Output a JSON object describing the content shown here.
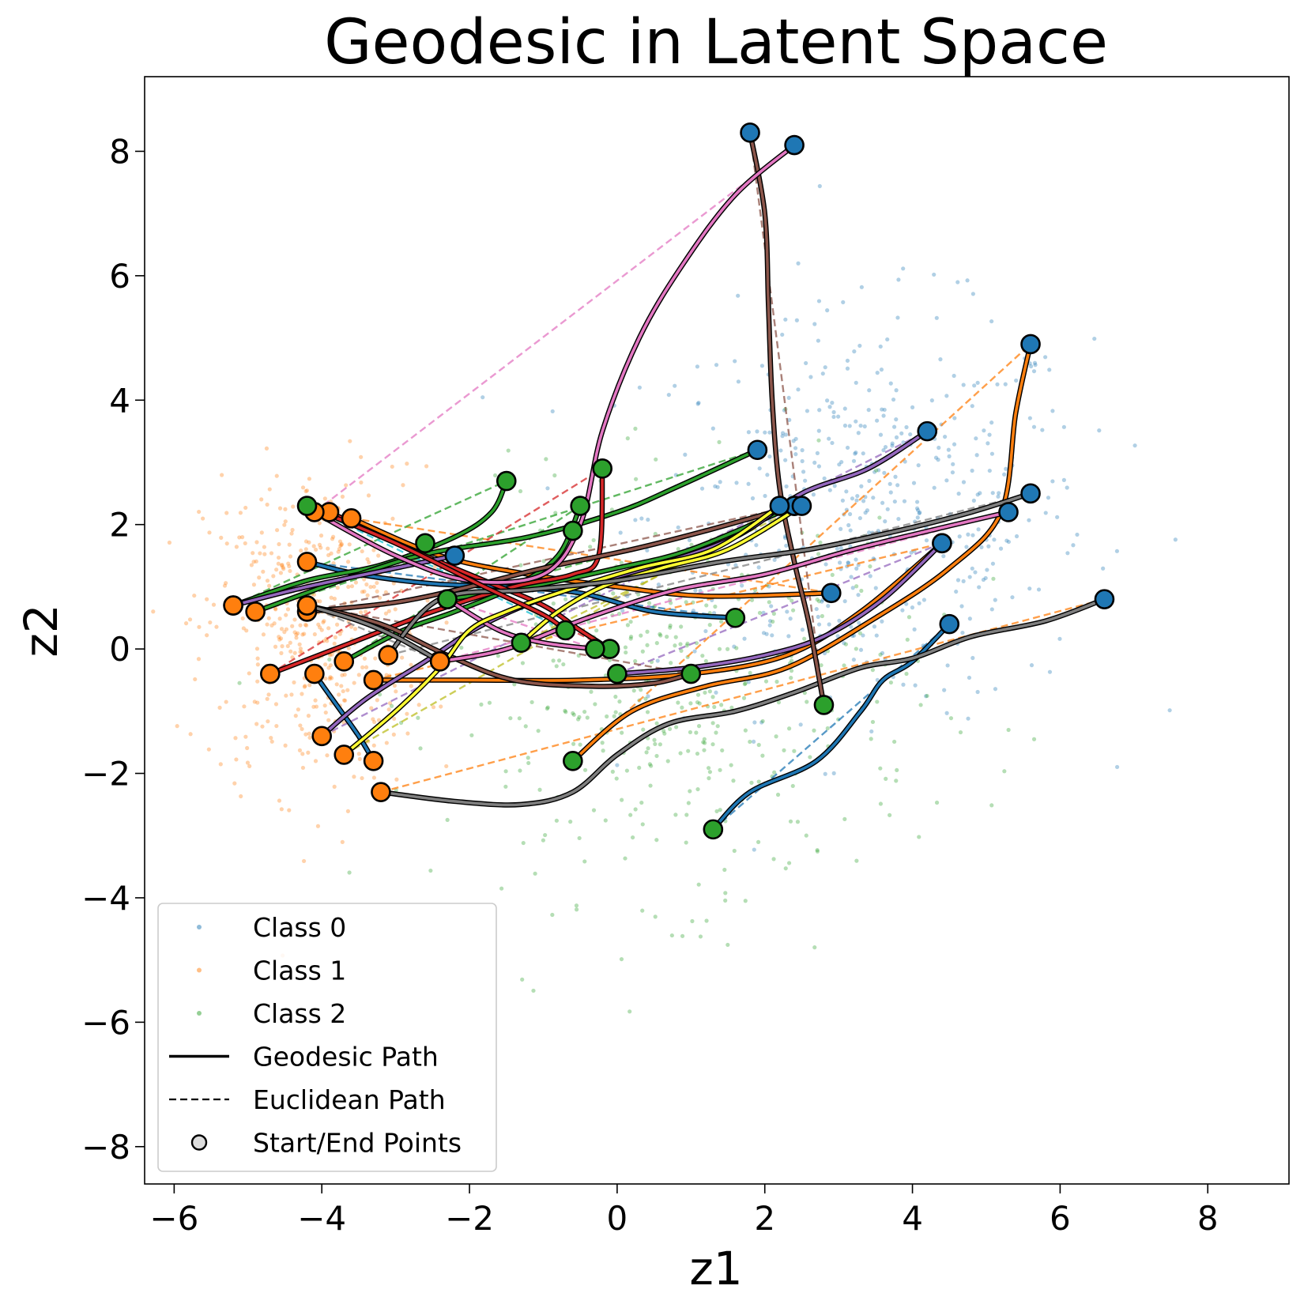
{
  "chart_data": {
    "type": "scatter",
    "title": "Geodesic in Latent Space",
    "xlabel": "z1",
    "ylabel": "z2",
    "xlim": [
      -6.4,
      9.1
    ],
    "ylim": [
      -8.6,
      9.2
    ],
    "xticks": [
      -6,
      -4,
      -2,
      0,
      2,
      4,
      6,
      8
    ],
    "yticks": [
      -8,
      -6,
      -4,
      -2,
      0,
      2,
      4,
      6,
      8
    ],
    "xtick_labels": [
      "−6",
      "−4",
      "−2",
      "0",
      "2",
      "4",
      "6",
      "8"
    ],
    "ytick_labels": [
      "−8",
      "−6",
      "−4",
      "−2",
      "0",
      "2",
      "4",
      "6",
      "8"
    ],
    "grid": false,
    "legend_position": "lower-left",
    "legend": [
      {
        "label": "Class 0",
        "kind": "dot",
        "color": "#1f77b4"
      },
      {
        "label": "Class 1",
        "kind": "dot",
        "color": "#ff7f0e"
      },
      {
        "label": "Class 2",
        "kind": "dot",
        "color": "#2ca02c"
      },
      {
        "label": "Geodesic Path",
        "kind": "solid"
      },
      {
        "label": "Euclidean Path",
        "kind": "dashed"
      },
      {
        "label": "Start/End Points",
        "kind": "marker"
      }
    ],
    "scatter_classes": [
      {
        "name": "Class 0",
        "color": "#1f77b4",
        "count": 500,
        "center": [
          3.4,
          2.2
        ],
        "spread": [
          1.5,
          1.6
        ]
      },
      {
        "name": "Class 1",
        "color": "#ff7f0e",
        "count": 450,
        "center": [
          -4.1,
          0.3
        ],
        "spread": [
          0.75,
          1.3
        ]
      },
      {
        "name": "Class 2",
        "color": "#2ca02c",
        "count": 450,
        "center": [
          0.9,
          -0.8
        ],
        "spread": [
          1.6,
          1.6
        ]
      }
    ],
    "paths": [
      {
        "color": "#1f77b4",
        "start": [
          -4.2,
          1.4
        ],
        "end": [
          1.6,
          0.5
        ],
        "start_class": 1,
        "end_class": 2,
        "geodesic": [
          [
            -4.2,
            1.4
          ],
          [
            -3.5,
            1.2
          ],
          [
            -2.5,
            1.05
          ],
          [
            -1.5,
            1.0
          ],
          [
            -0.5,
            0.9
          ],
          [
            0.5,
            0.6
          ],
          [
            1.6,
            0.5
          ]
        ]
      },
      {
        "color": "#1f77b4",
        "start": [
          -4.1,
          -0.4
        ],
        "end": [
          -3.3,
          -1.8
        ],
        "start_class": 1,
        "end_class": 1,
        "geodesic": [
          [
            -4.1,
            -0.4
          ],
          [
            -3.8,
            -0.9
          ],
          [
            -3.5,
            -1.4
          ],
          [
            -3.3,
            -1.8
          ]
        ]
      },
      {
        "color": "#1f77b4",
        "start": [
          1.3,
          -2.9
        ],
        "end": [
          4.5,
          0.4
        ],
        "start_class": 2,
        "end_class": 0,
        "geodesic": [
          [
            1.3,
            -2.9
          ],
          [
            1.8,
            -2.3
          ],
          [
            2.7,
            -1.8
          ],
          [
            3.3,
            -1.0
          ],
          [
            3.6,
            -0.5
          ],
          [
            4.0,
            -0.2
          ],
          [
            4.5,
            0.4
          ]
        ]
      },
      {
        "color": "#ff7f0e",
        "start": [
          -3.2,
          -2.3
        ],
        "end": [
          5.6,
          4.9
        ],
        "start_class": 1,
        "end_class": 0,
        "geodesic_color": "#7f7f7f",
        "geodesic": [
          [
            -3.2,
            -2.3
          ],
          [
            -2.2,
            -2.45
          ],
          [
            -1.3,
            -2.5
          ],
          [
            -0.6,
            -2.3
          ],
          [
            0.0,
            -1.7
          ],
          [
            0.7,
            -1.2
          ],
          [
            1.6,
            -1.0
          ],
          [
            2.4,
            -0.7
          ],
          [
            3.3,
            -0.3
          ],
          [
            4.0,
            -0.15
          ],
          [
            4.8,
            0.2
          ],
          [
            5.8,
            0.45
          ],
          [
            6.6,
            0.8
          ]
        ],
        "euclid_end": [
          6.6,
          0.8
        ]
      },
      {
        "color": "#ff7f0e",
        "start": [
          -0.6,
          -1.8
        ],
        "end": [
          5.6,
          4.9
        ],
        "start_class": 2,
        "end_class": 0,
        "geodesic": [
          [
            -0.6,
            -1.8
          ],
          [
            0.2,
            -1.0
          ],
          [
            1.2,
            -0.6
          ],
          [
            2.3,
            -0.3
          ],
          [
            3.5,
            0.5
          ],
          [
            4.5,
            1.3
          ],
          [
            5.2,
            2.2
          ],
          [
            5.4,
            3.8
          ],
          [
            5.6,
            4.9
          ]
        ]
      },
      {
        "color": "#ff7f0e",
        "start": [
          -3.6,
          2.1
        ],
        "end": [
          2.9,
          0.9
        ],
        "start_class": 1,
        "end_class": 0,
        "geodesic": [
          [
            -3.6,
            2.1
          ],
          [
            -2.4,
            1.5
          ],
          [
            -1.2,
            1.2
          ],
          [
            0.0,
            1.0
          ],
          [
            1.2,
            0.85
          ],
          [
            2.9,
            0.9
          ]
        ]
      },
      {
        "color": "#ff7f0e",
        "start": [
          -3.3,
          -0.5
        ],
        "end": [
          4.4,
          1.7
        ],
        "start_class": 1,
        "end_class": 0,
        "geodesic": [
          [
            -3.3,
            -0.5
          ],
          [
            -2.0,
            -0.5
          ],
          [
            -0.5,
            -0.5
          ],
          [
            1.0,
            -0.4
          ],
          [
            2.3,
            -0.1
          ],
          [
            3.3,
            0.6
          ],
          [
            4.4,
            1.7
          ]
        ]
      },
      {
        "color": "#2ca02c",
        "start": [
          -5.2,
          0.7
        ],
        "end": [
          -1.5,
          2.7
        ],
        "start_class": 1,
        "end_class": 2,
        "geodesic": [
          [
            -5.2,
            0.7
          ],
          [
            -4.2,
            1.1
          ],
          [
            -3.2,
            1.35
          ],
          [
            -2.2,
            1.8
          ],
          [
            -1.7,
            2.2
          ],
          [
            -1.5,
            2.7
          ]
        ]
      },
      {
        "color": "#2ca02c",
        "start": [
          -4.9,
          0.6
        ],
        "end": [
          1.9,
          3.2
        ],
        "start_class": 1,
        "end_class": 0,
        "geodesic": [
          [
            -4.9,
            0.6
          ],
          [
            -3.5,
            1.2
          ],
          [
            -2.5,
            1.55
          ],
          [
            -1.2,
            1.8
          ],
          [
            0.0,
            2.2
          ],
          [
            0.8,
            2.6
          ],
          [
            1.9,
            3.2
          ]
        ]
      },
      {
        "color": "#2ca02c",
        "start": [
          -3.7,
          -0.2
        ],
        "end": [
          -0.5,
          2.3
        ],
        "start_class": 1,
        "end_class": 2,
        "geodesic": [
          [
            -3.7,
            -0.2
          ],
          [
            -2.9,
            0.3
          ],
          [
            -2.2,
            0.6
          ],
          [
            -1.4,
            1.0
          ],
          [
            -0.8,
            1.5
          ],
          [
            -0.5,
            2.3
          ]
        ]
      },
      {
        "color": "#2ca02c",
        "start": [
          -2.3,
          0.8
        ],
        "end": [
          2.4,
          2.3
        ],
        "start_class": 2,
        "end_class": 0,
        "geodesic": [
          [
            -2.3,
            0.8
          ],
          [
            -1.2,
            1.0
          ],
          [
            0.0,
            1.3
          ],
          [
            1.0,
            1.6
          ],
          [
            2.4,
            2.3
          ]
        ]
      },
      {
        "color": "#d62728",
        "start": [
          -4.7,
          -0.4
        ],
        "end": [
          -0.2,
          2.9
        ],
        "start_class": 1,
        "end_class": 2,
        "geodesic": [
          [
            -4.7,
            -0.4
          ],
          [
            -3.6,
            0.1
          ],
          [
            -2.5,
            0.6
          ],
          [
            -1.4,
            1.0
          ],
          [
            -0.6,
            1.2
          ],
          [
            -0.25,
            1.5
          ],
          [
            -0.2,
            2.9
          ]
        ]
      },
      {
        "color": "#d62728",
        "start": [
          -3.9,
          2.2
        ],
        "end": [
          -0.1,
          0.0
        ],
        "start_class": 1,
        "end_class": 2,
        "geodesic": [
          [
            -3.9,
            2.2
          ],
          [
            -2.8,
            1.6
          ],
          [
            -1.8,
            1.1
          ],
          [
            -1.0,
            0.7
          ],
          [
            -0.5,
            0.3
          ],
          [
            -0.1,
            0.0
          ]
        ]
      },
      {
        "color": "#9467bd",
        "start": [
          -5.2,
          0.7
        ],
        "end": [
          4.2,
          3.5
        ],
        "start_class": 1,
        "end_class": 0,
        "geodesic_color": "#9467bd",
        "geodesic": [
          [
            -5.2,
            0.7
          ],
          [
            -4.2,
            1.0
          ],
          [
            -3.0,
            1.3
          ],
          [
            -2.2,
            1.5
          ]
        ]
      },
      {
        "color": "#9467bd",
        "start": [
          -4.0,
          -1.4
        ],
        "end": [
          2.5,
          2.5
        ],
        "start_class": 1,
        "end_class": 0,
        "geodesic": [
          [
            -4.0,
            -1.4
          ],
          [
            -3.4,
            -0.8
          ],
          [
            -2.6,
            -0.2
          ],
          [
            -1.8,
            0.4
          ],
          [
            -0.8,
            0.9
          ],
          [
            0.4,
            1.3
          ],
          [
            1.6,
            1.8
          ],
          [
            2.5,
            2.5
          ],
          [
            3.4,
            2.9
          ],
          [
            4.2,
            3.5
          ]
        ]
      },
      {
        "color": "#9467bd",
        "start": [
          0.0,
          -0.4
        ],
        "end": [
          4.4,
          1.7
        ],
        "start_class": 2,
        "end_class": 0,
        "geodesic": [
          [
            0.0,
            -0.4
          ],
          [
            1.0,
            -0.3
          ],
          [
            2.0,
            -0.1
          ],
          [
            2.8,
            0.2
          ],
          [
            3.6,
            0.8
          ],
          [
            4.4,
            1.7
          ]
        ]
      },
      {
        "color": "#8c564b",
        "start": [
          1.8,
          8.3
        ],
        "end": [
          2.8,
          -0.9
        ],
        "start_class": 0,
        "end_class": 2,
        "geodesic": [
          [
            1.8,
            8.3
          ],
          [
            2.0,
            7.0
          ],
          [
            2.05,
            5.5
          ],
          [
            2.1,
            4.0
          ],
          [
            2.2,
            2.6
          ],
          [
            2.4,
            1.4
          ],
          [
            2.6,
            0.4
          ],
          [
            2.8,
            -0.9
          ]
        ]
      },
      {
        "color": "#8c564b",
        "start": [
          -4.2,
          0.6
        ],
        "end": [
          2.4,
          2.3
        ],
        "start_class": 1,
        "end_class": 0,
        "geodesic": [
          [
            -4.2,
            0.6
          ],
          [
            -3.0,
            0.75
          ],
          [
            -2.0,
            1.0
          ],
          [
            -1.0,
            1.3
          ],
          [
            0.2,
            1.6
          ],
          [
            1.2,
            1.9
          ],
          [
            2.4,
            2.3
          ]
        ]
      },
      {
        "color": "#8c564b",
        "start": [
          -4.2,
          0.7
        ],
        "end": [
          1.0,
          -0.4
        ],
        "start_class": 1,
        "end_class": 2,
        "geodesic": [
          [
            -4.2,
            0.7
          ],
          [
            -3.2,
            0.4
          ],
          [
            -2.3,
            -0.1
          ],
          [
            -1.4,
            -0.5
          ],
          [
            -0.3,
            -0.6
          ],
          [
            0.5,
            -0.55
          ],
          [
            1.0,
            -0.4
          ]
        ]
      },
      {
        "color": "#e377c2",
        "start": [
          -4.1,
          2.2
        ],
        "end": [
          2.4,
          8.1
        ],
        "start_class": 1,
        "end_class": 0,
        "geodesic": [
          [
            -4.1,
            2.2
          ],
          [
            -3.0,
            1.5
          ],
          [
            -2.0,
            1.1
          ],
          [
            -1.0,
            1.2
          ],
          [
            -0.5,
            2.0
          ],
          [
            -0.2,
            3.5
          ],
          [
            0.3,
            5.0
          ],
          [
            0.9,
            6.2
          ],
          [
            1.6,
            7.3
          ],
          [
            2.4,
            8.1
          ]
        ]
      },
      {
        "color": "#e377c2",
        "start": [
          -2.4,
          -0.2
        ],
        "end": [
          5.3,
          2.2
        ],
        "start_class": 1,
        "end_class": 0,
        "geodesic": [
          [
            -2.4,
            -0.2
          ],
          [
            -1.5,
            0.0
          ],
          [
            -0.4,
            0.5
          ],
          [
            0.8,
            0.95
          ],
          [
            2.0,
            1.2
          ],
          [
            3.2,
            1.6
          ],
          [
            4.4,
            1.95
          ],
          [
            5.3,
            2.2
          ]
        ]
      },
      {
        "color": "#e377c2",
        "start": [
          -2.3,
          0.8
        ],
        "end": [
          -0.3,
          0.0
        ],
        "start_class": 2,
        "end_class": 2,
        "geodesic": [
          [
            -2.3,
            0.8
          ],
          [
            -1.6,
            0.3
          ],
          [
            -1.0,
            0.1
          ],
          [
            -0.3,
            0.0
          ]
        ]
      },
      {
        "color": "#bcbd22",
        "start": [
          -3.7,
          -1.7
        ],
        "end": [
          2.2,
          2.3
        ],
        "start_class": 1,
        "end_class": 0,
        "geodesic_color": "#ffff33",
        "geodesic": [
          [
            -3.7,
            -1.7
          ],
          [
            -3.0,
            -1.0
          ],
          [
            -2.4,
            -0.3
          ],
          [
            -2.0,
            0.3
          ],
          [
            -1.5,
            0.6
          ],
          [
            -0.8,
            0.9
          ],
          [
            0.3,
            1.3
          ],
          [
            1.3,
            1.6
          ],
          [
            2.2,
            2.3
          ]
        ]
      },
      {
        "color": "#bcbd22",
        "start": [
          -1.3,
          0.1
        ],
        "end": [
          2.5,
          2.3
        ],
        "start_class": 2,
        "end_class": 0,
        "geodesic_color": "#ffff33",
        "geodesic": [
          [
            -1.3,
            0.1
          ],
          [
            -0.8,
            0.6
          ],
          [
            -0.2,
            1.0
          ],
          [
            0.6,
            1.3
          ],
          [
            1.5,
            1.6
          ],
          [
            2.5,
            2.3
          ]
        ]
      },
      {
        "color": "#7f7f7f",
        "start": [
          -3.1,
          -0.1
        ],
        "end": [
          5.6,
          2.5
        ],
        "start_class": 1,
        "end_class": 0,
        "geodesic": [
          [
            -3.1,
            -0.1
          ],
          [
            -2.4,
            0.8
          ],
          [
            -1.2,
            0.95
          ],
          [
            0.0,
            1.1
          ],
          [
            1.4,
            1.4
          ],
          [
            2.6,
            1.6
          ],
          [
            3.8,
            1.9
          ],
          [
            4.8,
            2.2
          ],
          [
            5.6,
            2.5
          ]
        ]
      },
      {
        "color": "#7f7f7f",
        "start": [
          -4.2,
          0.7
        ],
        "end": [
          -2.4,
          -0.2
        ],
        "start_class": 1,
        "end_class": 1,
        "geodesic": [
          [
            -4.2,
            0.7
          ],
          [
            -3.5,
            0.45
          ],
          [
            -3.0,
            0.2
          ],
          [
            -2.4,
            -0.2
          ]
        ]
      },
      {
        "color": "#17becf",
        "start": [
          -0.7,
          0.3
        ],
        "end": [
          -0.3,
          0.0
        ],
        "start_class": 2,
        "end_class": 2,
        "geodesic_color": "#d62728",
        "geodesic": [
          [
            -4.2,
            2.3
          ],
          [
            -3.0,
            1.7
          ],
          [
            -1.8,
            1.0
          ],
          [
            -1.0,
            0.55
          ],
          [
            -0.7,
            0.3
          ]
        ]
      }
    ],
    "extra_markers": [
      {
        "x": -0.6,
        "y": 1.9,
        "class": 2
      },
      {
        "x": -2.6,
        "y": 1.7,
        "class": 2
      }
    ]
  }
}
